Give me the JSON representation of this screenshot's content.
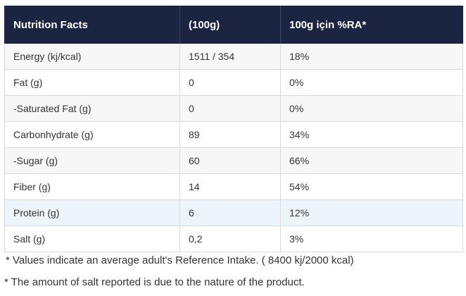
{
  "table": {
    "headers": [
      "Nutrition Facts",
      "(100g)",
      "100g için %RA*"
    ],
    "rows": [
      [
        "Energy (kj/kcal)",
        "1511 / 354",
        "18%"
      ],
      [
        "Fat (g)",
        "0",
        "0%"
      ],
      [
        "-Saturated Fat (g)",
        "0",
        "0%"
      ],
      [
        "Carbonhydrate (g)",
        "89",
        "34%"
      ],
      [
        "-Sugar (g)",
        "60",
        "66%"
      ],
      [
        "Fiber (g)",
        "14",
        "54%"
      ],
      [
        "Protein (g)",
        "6",
        "12%"
      ],
      [
        "Salt (g)",
        "0,2",
        "3%"
      ]
    ]
  },
  "notes": {
    "reference_intake": " * Values indicate an average adult's Reference Intake. ( 8400 kj/2000 kcal)",
    "salt": "* The amount of salt reported is due to the nature of the product."
  },
  "colors": {
    "header_bg": "#1b2440",
    "row_alt": "#f7f7f7",
    "row_highlight": "#edf5fc"
  }
}
